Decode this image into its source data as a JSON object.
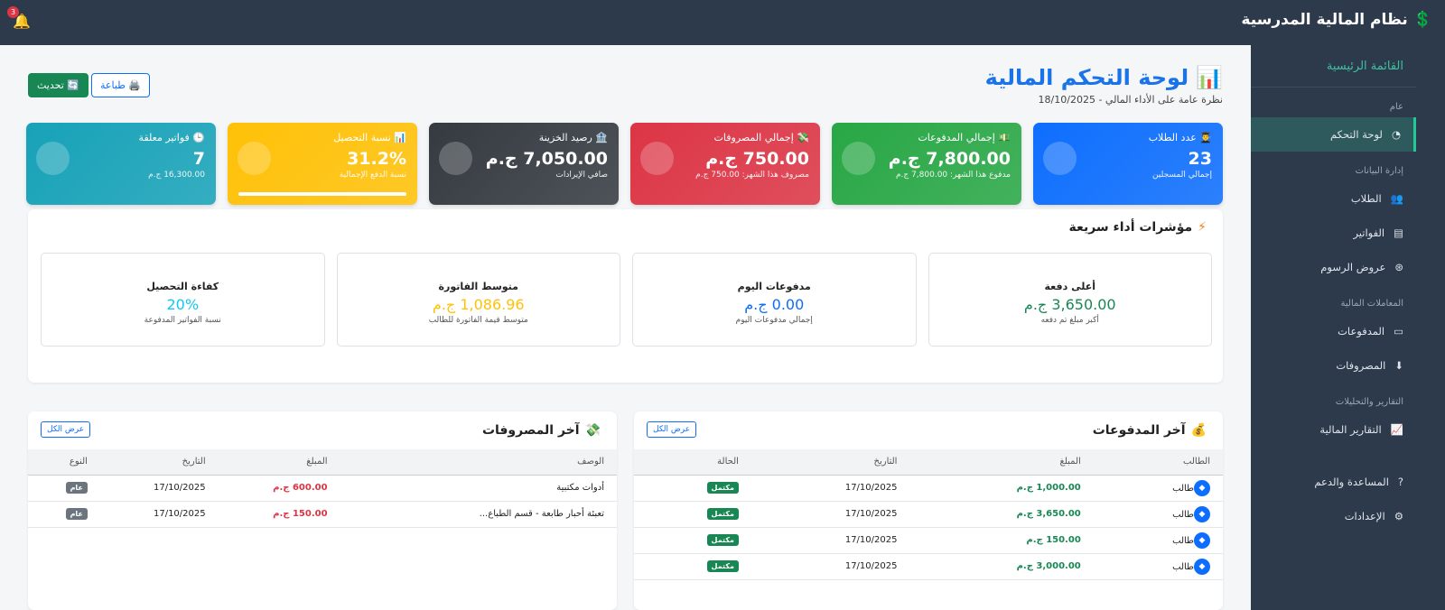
{
  "header": {
    "title": "نظام المالية المدرسية",
    "notifications": "3"
  },
  "sidebar": {
    "title": "القائمة الرئيسية",
    "sections": [
      {
        "label": "عام",
        "items": [
          {
            "label": "لوحة التحكم",
            "icon": "dashboard-icon",
            "active": true
          }
        ]
      },
      {
        "label": "إدارة البيانات",
        "items": [
          {
            "label": "الطلاب",
            "icon": "users-icon"
          },
          {
            "label": "الفواتير",
            "icon": "invoice-icon"
          },
          {
            "label": "عروض الرسوم",
            "icon": "fees-icon"
          }
        ]
      },
      {
        "label": "المعاملات المالية",
        "items": [
          {
            "label": "المدفوعات",
            "icon": "payment-card-icon"
          },
          {
            "label": "المصروفات",
            "icon": "expense-icon"
          }
        ]
      },
      {
        "label": "التقارير والتحليلات",
        "items": [
          {
            "label": "التقارير المالية",
            "icon": "chart-line-icon"
          }
        ]
      },
      {
        "label": "",
        "items": [
          {
            "label": "المساعدة والدعم",
            "icon": "help-icon"
          },
          {
            "label": "الإعدادات",
            "icon": "gear-icon"
          }
        ]
      }
    ]
  },
  "page": {
    "title": "لوحة التحكم المالية",
    "subtitle": "نظرة عامة على الأداء المالي - 18/10/2025",
    "print": "طباعة",
    "refresh": "تحديث"
  },
  "cards": [
    {
      "title": "عدد الطلاب",
      "value": "23",
      "sub": "إجمالي المسجلين",
      "color": "#0d6efd",
      "icon": "👨‍🎓"
    },
    {
      "title": "إجمالي المدفوعات",
      "value": "7,800.00 ج.م",
      "sub": "مدفوع هذا الشهر: 7,800.00 ج.م",
      "color": "#28a745",
      "icon": "💵"
    },
    {
      "title": "إجمالي المصروفات",
      "value": "750.00 ج.م",
      "sub": "مصروف هذا الشهر: 750.00 ج.م",
      "color": "#dc3545",
      "icon": "💸"
    },
    {
      "title": "رصيد الخزينة",
      "value": "7,050.00 ج.م",
      "sub": "صافي الإيرادات",
      "color": "#343a40",
      "icon": "🏦"
    },
    {
      "title": "نسبة التحصيل",
      "value": "31.2%",
      "sub": "نسبة الدفع الإجمالية",
      "color": "#ffc107",
      "icon": "📊",
      "progress": 31.2
    },
    {
      "title": "فواتير معلقة",
      "value": "7",
      "sub": "16,300.00 ج.م",
      "color": "#17a2b8",
      "icon": "🕒"
    }
  ],
  "kpi": {
    "title": "مؤشرات أداء سريعة",
    "items": [
      {
        "title": "أعلى دفعة",
        "value": "3,650.00 ج.م",
        "sub": "أكبر مبلغ تم دفعه",
        "color": "#198754"
      },
      {
        "title": "مدفوعات اليوم",
        "value": "0.00 ج.م",
        "sub": "إجمالي مدفوعات اليوم",
        "color": "#0d6efd"
      },
      {
        "title": "متوسط الفاتورة",
        "value": "1,086.96 ج.م",
        "sub": "متوسط قيمة الفاتورة للطالب",
        "color": "#ffc107"
      },
      {
        "title": "كفاءة التحصيل",
        "value": "20%",
        "sub": "نسبة الفواتير المدفوعة",
        "color": "#0dcaf0"
      }
    ]
  },
  "payments": {
    "title": "آخر المدفوعات",
    "view_all": "عرض الكل",
    "columns": [
      "الطالب",
      "المبلغ",
      "التاريخ",
      "الحالة"
    ],
    "rows": [
      {
        "student": "طالب",
        "amount": "1,000.00 ج.م",
        "date": "17/10/2025",
        "status": "مكتمل"
      },
      {
        "student": "طالب",
        "amount": "3,650.00 ج.م",
        "date": "17/10/2025",
        "status": "مكتمل"
      },
      {
        "student": "طالب",
        "amount": "150.00 ج.م",
        "date": "17/10/2025",
        "status": "مكتمل"
      },
      {
        "student": "طالب",
        "amount": "3,000.00 ج.م",
        "date": "17/10/2025",
        "status": "مكتمل"
      }
    ]
  },
  "expenses": {
    "title": "آخر المصروفات",
    "view_all": "عرض الكل",
    "columns": [
      "الوصف",
      "المبلغ",
      "التاريخ",
      "النوع"
    ],
    "rows": [
      {
        "desc": "أدوات مكتبية",
        "amount": "600.00 ج.م",
        "date": "17/10/2025",
        "type": "عام"
      },
      {
        "desc": "تعبئة أحبار طابعة - قسم الطباع...",
        "amount": "150.00 ج.م",
        "date": "17/10/2025",
        "type": "عام"
      }
    ]
  }
}
